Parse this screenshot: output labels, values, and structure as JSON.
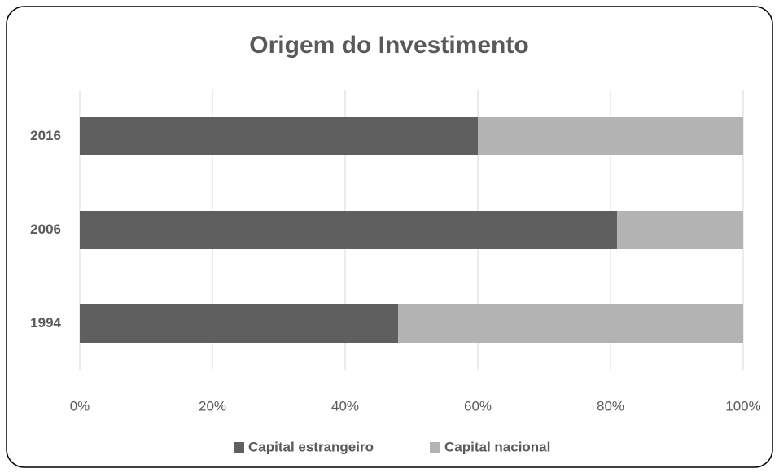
{
  "chart_data": {
    "type": "stacked-bar-horizontal",
    "title": "Origem do Investimento",
    "categories": [
      "2016",
      "2006",
      "1994"
    ],
    "series": [
      {
        "name": "Capital estrangeiro",
        "color": "#5f5f5f",
        "values": [
          60,
          81,
          48
        ]
      },
      {
        "name": "Capital nacional",
        "color": "#b3b3b3",
        "values": [
          40,
          19,
          52
        ]
      }
    ],
    "xlim": [
      0,
      100
    ],
    "xticks": [
      {
        "value": 0,
        "label": "0%"
      },
      {
        "value": 20,
        "label": "20%"
      },
      {
        "value": 40,
        "label": "40%"
      },
      {
        "value": 60,
        "label": "60%"
      },
      {
        "value": 80,
        "label": "80%"
      },
      {
        "value": 100,
        "label": "100%"
      }
    ],
    "grid": true,
    "legend": "bottom"
  }
}
